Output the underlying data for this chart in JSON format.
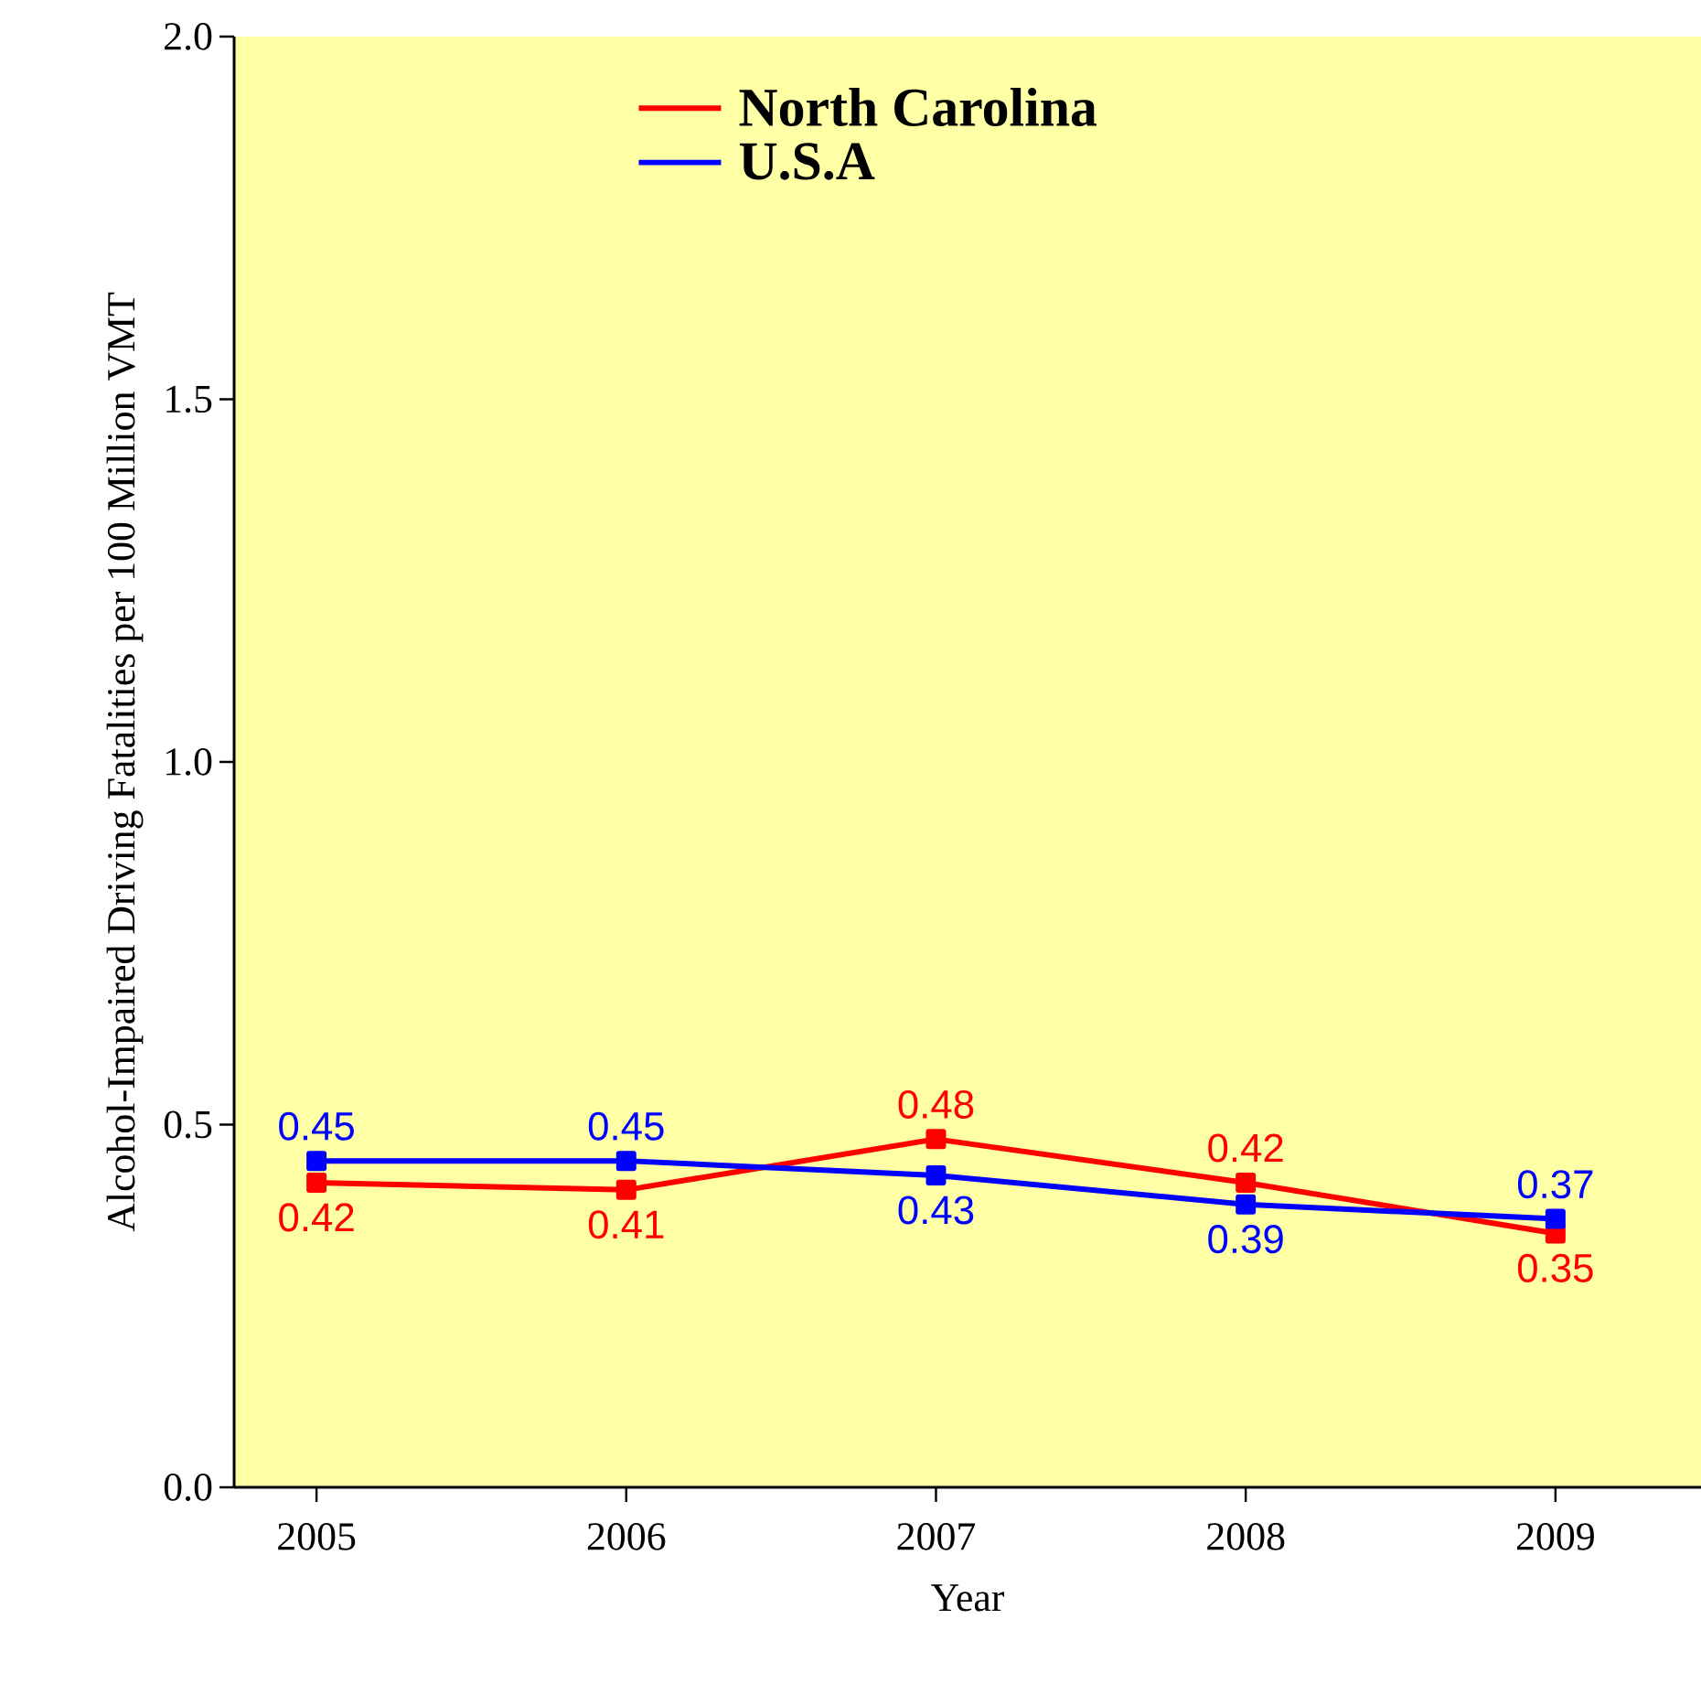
{
  "chart_data": {
    "type": "line",
    "xlabel": "Year",
    "ylabel": "Alcohol-Impaired Driving Fatalities per 100 Million VMT",
    "categories": [
      "2005",
      "2006",
      "2007",
      "2008",
      "2009"
    ],
    "series": [
      {
        "name": "North Carolina",
        "color": "#ff0000",
        "values": [
          0.42,
          0.41,
          0.48,
          0.42,
          0.35
        ]
      },
      {
        "name": "U.S.A",
        "color": "#0000ff",
        "values": [
          0.45,
          0.45,
          0.43,
          0.39,
          0.37
        ]
      }
    ],
    "ylim": [
      0,
      2
    ],
    "yticks": [
      {
        "value": 0,
        "label": "0.0"
      },
      {
        "value": 0.5,
        "label": "0.5"
      },
      {
        "value": 1,
        "label": "1.0"
      },
      {
        "value": 1.5,
        "label": "1.5"
      },
      {
        "value": 2,
        "label": "2.0"
      }
    ],
    "grid": false,
    "legend": "top",
    "marker": "square",
    "line_style": "solid",
    "data_labels": true
  }
}
